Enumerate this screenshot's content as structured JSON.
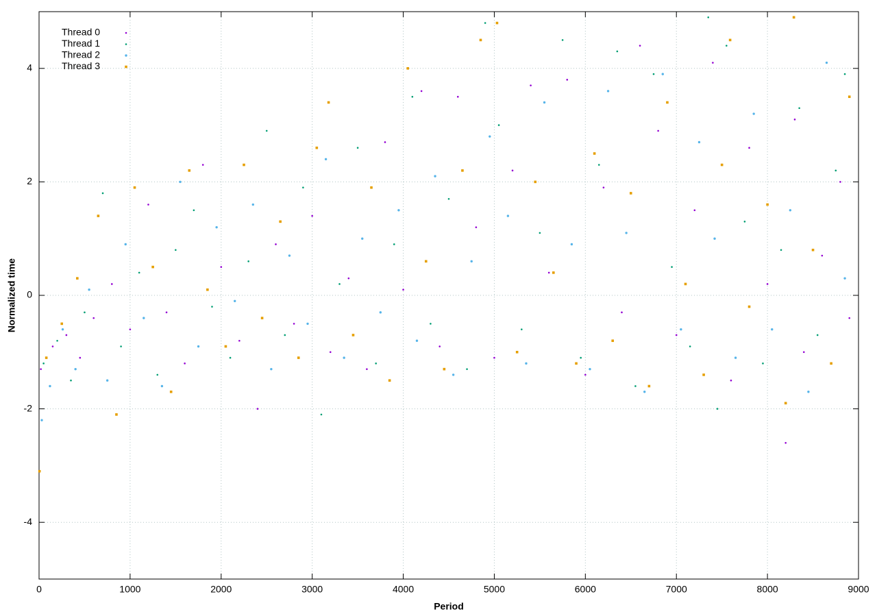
{
  "chart_data": {
    "type": "scatter",
    "xlabel": "Period",
    "ylabel": "Normalized time",
    "xlim": [
      0,
      9000
    ],
    "ylim": [
      -5,
      5
    ],
    "xticks": [
      0,
      1000,
      2000,
      3000,
      4000,
      5000,
      6000,
      7000,
      8000,
      9000
    ],
    "yticks": [
      -4,
      -2,
      0,
      2,
      4
    ],
    "grid": true,
    "legend": "top-left",
    "series": [
      {
        "name": "Thread 0",
        "color": "#9400d3",
        "marker": "dot",
        "x": [
          20,
          150,
          300,
          450,
          600,
          800,
          1000,
          1200,
          1400,
          1600,
          1800,
          2000,
          2200,
          2400,
          2600,
          2800,
          3000,
          3200,
          3400,
          3600,
          3800,
          4000,
          4200,
          4400,
          4600,
          4800,
          5000,
          5200,
          5400,
          5600,
          5800,
          6000,
          6200,
          6400,
          6600,
          6800,
          7000,
          7200,
          7400,
          7600,
          7800,
          8000,
          8200,
          8300,
          8400,
          8600,
          8800,
          8900
        ],
        "values": [
          -1.3,
          -0.9,
          -0.7,
          -1.1,
          -0.4,
          0.2,
          -0.6,
          1.6,
          -0.3,
          -1.2,
          2.3,
          0.5,
          -0.8,
          -2.0,
          0.9,
          -0.5,
          1.4,
          -1.0,
          0.3,
          -1.3,
          2.7,
          0.1,
          3.6,
          -0.9,
          3.5,
          1.2,
          -1.1,
          2.2,
          3.7,
          0.4,
          3.8,
          -1.4,
          1.9,
          -0.3,
          4.4,
          2.9,
          -0.7,
          1.5,
          4.1,
          -1.5,
          2.6,
          0.2,
          -2.6,
          3.1,
          -1.0,
          0.7,
          2.0,
          -0.4
        ]
      },
      {
        "name": "Thread 1",
        "color": "#009e73",
        "marker": "dot",
        "x": [
          50,
          200,
          350,
          500,
          700,
          900,
          1100,
          1300,
          1500,
          1700,
          1900,
          2100,
          2300,
          2500,
          2700,
          2900,
          3100,
          3300,
          3500,
          3700,
          3900,
          4100,
          4300,
          4500,
          4700,
          4900,
          5050,
          5300,
          5500,
          5750,
          5950,
          6150,
          6350,
          6550,
          6750,
          6950,
          7150,
          7350,
          7450,
          7550,
          7750,
          7950,
          8150,
          8350,
          8550,
          8750,
          8850
        ],
        "values": [
          -1.2,
          -0.8,
          -1.5,
          -0.3,
          1.8,
          -0.9,
          0.4,
          -1.4,
          0.8,
          1.5,
          -0.2,
          -1.1,
          0.6,
          2.9,
          -0.7,
          1.9,
          -2.1,
          0.2,
          2.6,
          -1.2,
          0.9,
          3.5,
          -0.5,
          1.7,
          -1.3,
          4.8,
          3.0,
          -0.6,
          1.1,
          4.5,
          -1.1,
          2.3,
          4.3,
          -1.6,
          3.9,
          0.5,
          -0.9,
          4.9,
          -2.0,
          4.4,
          1.3,
          -1.2,
          0.8,
          3.3,
          -0.7,
          2.2,
          3.9
        ]
      },
      {
        "name": "Thread 2",
        "color": "#56b4e9",
        "marker": "circle",
        "x": [
          30,
          120,
          260,
          400,
          550,
          750,
          950,
          1150,
          1350,
          1550,
          1750,
          1950,
          2150,
          2350,
          2550,
          2750,
          2950,
          3150,
          3350,
          3550,
          3750,
          3950,
          4150,
          4350,
          4550,
          4750,
          4950,
          5150,
          5350,
          5550,
          5850,
          6050,
          6250,
          6450,
          6650,
          6850,
          7050,
          7250,
          7420,
          7650,
          7850,
          8050,
          8250,
          8450,
          8650,
          8850
        ],
        "values": [
          -2.2,
          -1.6,
          -0.6,
          -1.3,
          0.1,
          -1.5,
          0.9,
          -0.4,
          -1.6,
          2.0,
          -0.9,
          1.2,
          -0.1,
          1.6,
          -1.3,
          0.7,
          -0.5,
          2.4,
          -1.1,
          1.0,
          -0.3,
          1.5,
          -0.8,
          2.1,
          -1.4,
          0.6,
          2.8,
          1.4,
          -1.2,
          3.4,
          0.9,
          -1.3,
          3.6,
          1.1,
          -1.7,
          3.9,
          -0.6,
          2.7,
          1.0,
          -1.1,
          3.2,
          -0.6,
          1.5,
          -1.7,
          4.1,
          0.3
        ]
      },
      {
        "name": "Thread 3",
        "color": "#e69f00",
        "marker": "square",
        "x": [
          5,
          80,
          250,
          420,
          650,
          850,
          1050,
          1250,
          1450,
          1650,
          1850,
          2050,
          2250,
          2450,
          2650,
          2850,
          3050,
          3180,
          3450,
          3650,
          3850,
          4050,
          4250,
          4450,
          4650,
          4850,
          5030,
          5250,
          5450,
          5650,
          5900,
          6100,
          6300,
          6500,
          6700,
          6900,
          7100,
          7300,
          7500,
          7590,
          7800,
          8000,
          8200,
          8290,
          8500,
          8700,
          8900
        ],
        "values": [
          -3.1,
          -1.1,
          -0.5,
          0.3,
          1.4,
          -2.1,
          1.9,
          0.5,
          -1.7,
          2.2,
          0.1,
          -0.9,
          2.3,
          -0.4,
          1.3,
          -1.1,
          2.6,
          3.4,
          -0.7,
          1.9,
          -1.5,
          4.0,
          0.6,
          -1.3,
          2.2,
          4.5,
          4.8,
          -1.0,
          2.0,
          0.4,
          -1.2,
          2.5,
          -0.8,
          1.8,
          -1.6,
          3.4,
          0.2,
          -1.4,
          2.3,
          4.5,
          -0.2,
          1.6,
          -1.9,
          4.9,
          0.8,
          -1.2,
          3.5
        ]
      }
    ]
  }
}
